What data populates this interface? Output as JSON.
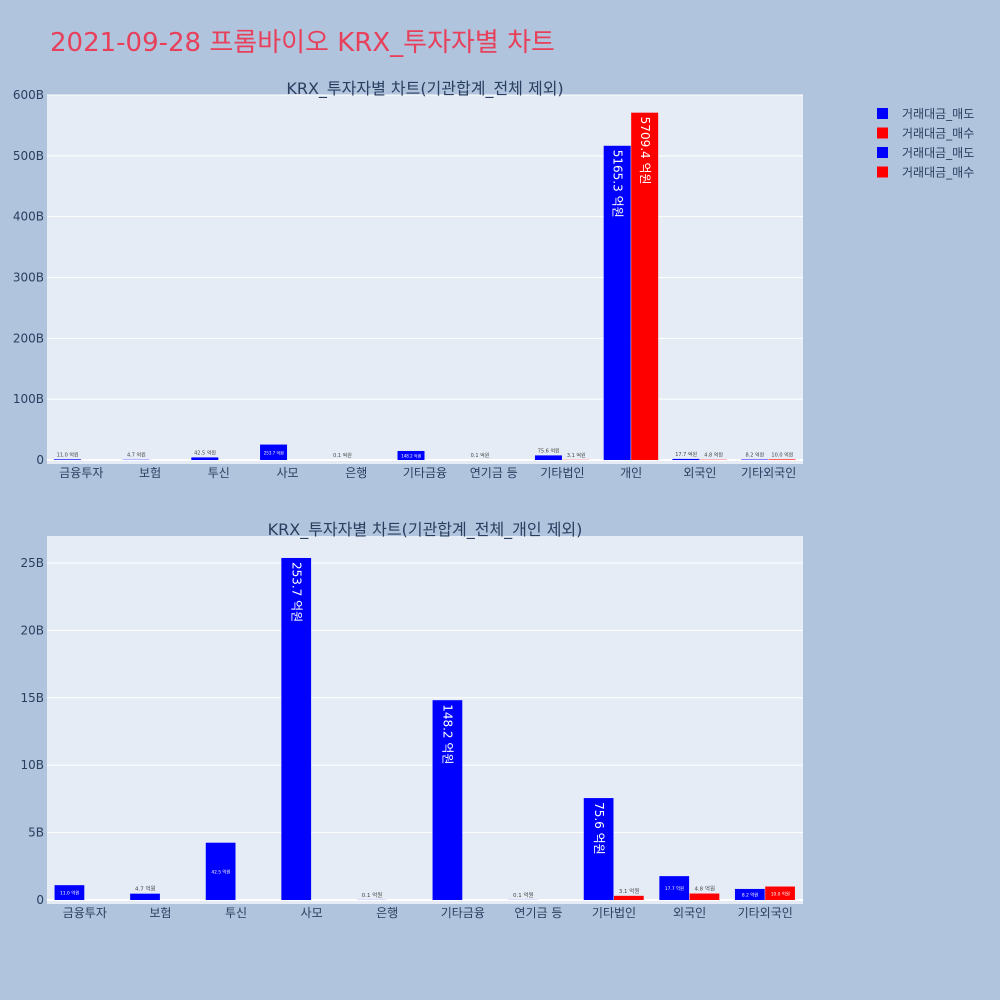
{
  "page": {
    "title": "2021-09-28 프롬바이오 KRX_투자자별 차트"
  },
  "legend": {
    "placement": "top-right",
    "items": [
      {
        "label": "거래대금_매도",
        "color": "#0000ff"
      },
      {
        "label": "거래대금_매수",
        "color": "#ff0000"
      },
      {
        "label": "거래대금_매도",
        "color": "#0000ff"
      },
      {
        "label": "거래대금_매수",
        "color": "#ff0000"
      }
    ]
  },
  "chart_data": [
    {
      "type": "bar",
      "title": "KRX_투자자별 차트(기관합계_전체 제외)",
      "categories": [
        "금융투자",
        "보험",
        "투신",
        "사모",
        "은행",
        "기타금융",
        "연기금 등",
        "기타법인",
        "개인",
        "외국인",
        "기타외국인"
      ],
      "y_ticks": [
        "0",
        "100B",
        "200B",
        "300B",
        "400B",
        "500B",
        "600B"
      ],
      "ylim": [
        0,
        600
      ],
      "y_unit": "B",
      "grid": true,
      "series": [
        {
          "name": "거래대금_매도",
          "color": "#0000ff",
          "values": [
            1.1,
            0.47,
            4.25,
            25.37,
            0.01,
            14.82,
            0.01,
            7.56,
            516.53,
            1.77,
            0.82
          ],
          "labels": [
            "11.0 억원",
            "4.7 억원",
            "42.5 억원",
            "253.7 억원",
            "0.1 억원",
            "148.2 억원",
            "0.1 억원",
            "75.6 억원",
            "5165.3 억원",
            "17.7 억원",
            "8.2 억원"
          ]
        },
        {
          "name": "거래대금_매수",
          "color": "#ff0000",
          "values": [
            0,
            0,
            0,
            0,
            0,
            0,
            0,
            0.31,
            570.94,
            0.48,
            1.0
          ],
          "labels": [
            "",
            "",
            "",
            "",
            "",
            "",
            "",
            "3.1 억원",
            "5709.4 억원",
            "4.8 억원",
            "10.0 억원"
          ]
        }
      ]
    },
    {
      "type": "bar",
      "title": "KRX_투자자별 차트(기관합계_전체_개인 제외)",
      "categories": [
        "금융투자",
        "보험",
        "투신",
        "사모",
        "은행",
        "기타금융",
        "연기금 등",
        "기타법인",
        "외국인",
        "기타외국인"
      ],
      "y_ticks": [
        "0",
        "5B",
        "10B",
        "15B",
        "20B",
        "25B"
      ],
      "ylim": [
        0,
        27
      ],
      "y_unit": "B",
      "grid": true,
      "series": [
        {
          "name": "거래대금_매도",
          "color": "#0000ff",
          "values": [
            1.1,
            0.47,
            4.25,
            25.37,
            0.01,
            14.82,
            0.01,
            7.56,
            1.77,
            0.82
          ],
          "labels": [
            "11.0 억원",
            "4.7 억원",
            "42.5 억원",
            "253.7 억원",
            "0.1 억원",
            "148.2 억원",
            "0.1 억원",
            "75.6 억원",
            "17.7 억원",
            "8.2 억원"
          ]
        },
        {
          "name": "거래대금_매수",
          "color": "#ff0000",
          "values": [
            0,
            0,
            0,
            0,
            0,
            0,
            0,
            0.31,
            0.48,
            1.0
          ],
          "labels": [
            "",
            "",
            "",
            "",
            "",
            "",
            "",
            "3.1 억원",
            "4.8 억원",
            "10.0 억원"
          ]
        }
      ]
    }
  ]
}
